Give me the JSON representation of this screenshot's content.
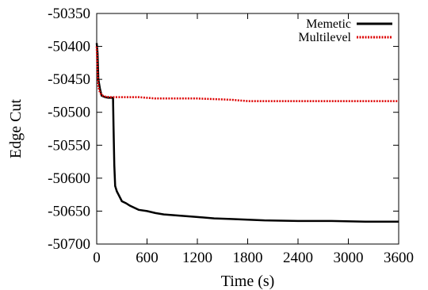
{
  "chart_data": {
    "type": "line",
    "title": "",
    "xlabel": "Time (s)",
    "ylabel": "Edge Cut",
    "xlim": [
      0,
      3600
    ],
    "ylim": [
      -50700,
      -50350
    ],
    "xticks": [
      0,
      600,
      1200,
      1800,
      2400,
      3000,
      3600
    ],
    "yticks": [
      -50350,
      -50400,
      -50450,
      -50500,
      -50550,
      -50600,
      -50650,
      -50700
    ],
    "grid": false,
    "legend_position": "top-right",
    "series": [
      {
        "name": "Memetic",
        "color": "#000000",
        "line_style": "solid",
        "x": [
          0,
          10,
          20,
          40,
          60,
          100,
          140,
          180,
          195,
          200,
          210,
          220,
          240,
          260,
          300,
          350,
          400,
          500,
          600,
          700,
          800,
          1000,
          1200,
          1400,
          1600,
          1800,
          2000,
          2400,
          2800,
          3200,
          3600
        ],
        "y": [
          -50395,
          -50410,
          -50450,
          -50465,
          -50475,
          -50477,
          -50478,
          -50478,
          -50478,
          -50520,
          -50580,
          -50612,
          -50620,
          -50625,
          -50635,
          -50638,
          -50642,
          -50648,
          -50650,
          -50653,
          -50655,
          -50657,
          -50659,
          -50661,
          -50662,
          -50663,
          -50664,
          -50665,
          -50665,
          -50666,
          -50666
        ]
      },
      {
        "name": "Multilevel",
        "color": "#dd0000",
        "line_style": "dotted",
        "x": [
          0,
          10,
          20,
          40,
          60,
          100,
          150,
          200,
          300,
          500,
          700,
          900,
          1200,
          1400,
          1600,
          1800,
          2100,
          2400,
          2800,
          3200,
          3600
        ],
        "y": [
          -50400,
          -50440,
          -50462,
          -50470,
          -50474,
          -50476,
          -50477,
          -50477,
          -50477,
          -50477,
          -50479,
          -50479,
          -50479,
          -50480,
          -50481,
          -50483,
          -50483,
          -50483,
          -50483,
          -50483,
          -50483
        ]
      }
    ]
  }
}
